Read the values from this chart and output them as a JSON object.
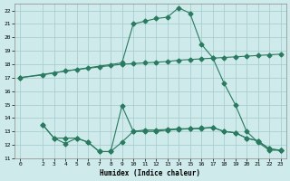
{
  "xlabel": "Humidex (Indice chaleur)",
  "bg_color": "#ceeaea",
  "grid_color": "#aacece",
  "line_color": "#2a7a60",
  "xlim": [
    -0.5,
    23.5
  ],
  "ylim": [
    11,
    22.5
  ],
  "yticks": [
    11,
    12,
    13,
    14,
    15,
    16,
    17,
    18,
    19,
    20,
    21,
    22
  ],
  "xticks": [
    0,
    2,
    3,
    4,
    5,
    6,
    7,
    8,
    9,
    10,
    11,
    12,
    13,
    14,
    15,
    16,
    17,
    18,
    19,
    20,
    21,
    22,
    23
  ],
  "line1_x": [
    0,
    2,
    3,
    4,
    5,
    6,
    7,
    8,
    9,
    10,
    11,
    12,
    13,
    14,
    15,
    16,
    17,
    18,
    19,
    20,
    21,
    22,
    23
  ],
  "line1_y": [
    17.0,
    17.2,
    17.35,
    17.5,
    17.6,
    17.7,
    17.8,
    17.9,
    18.0,
    18.05,
    18.1,
    18.15,
    18.2,
    18.3,
    18.35,
    18.4,
    18.45,
    18.5,
    18.55,
    18.6,
    18.65,
    18.7,
    18.75
  ],
  "line2_x": [
    0,
    9,
    10,
    11,
    12,
    13,
    14,
    15,
    16,
    17,
    18,
    19,
    20,
    21,
    22,
    23
  ],
  "line2_y": [
    17.0,
    18.1,
    21.0,
    21.2,
    21.4,
    21.5,
    22.2,
    21.8,
    19.5,
    18.5,
    16.6,
    15.0,
    13.0,
    12.2,
    11.6,
    11.6
  ],
  "line3_x": [
    2,
    3,
    4,
    5,
    6,
    7,
    8,
    9,
    10,
    11,
    12,
    13,
    14,
    15,
    16,
    17,
    18,
    19,
    20,
    21,
    22,
    23
  ],
  "line3_y": [
    13.5,
    12.5,
    12.5,
    12.5,
    12.2,
    11.5,
    11.5,
    12.2,
    13.0,
    13.1,
    13.1,
    13.15,
    13.2,
    13.2,
    13.25,
    13.3,
    13.0,
    12.9,
    12.5,
    12.3,
    11.7,
    11.6
  ],
  "line4_x": [
    2,
    3,
    4,
    5,
    6,
    7,
    8,
    9,
    10,
    11,
    12,
    13,
    14,
    15,
    16,
    17,
    18,
    19,
    20,
    21,
    22,
    23
  ],
  "line4_y": [
    13.5,
    12.5,
    12.1,
    12.5,
    12.2,
    11.5,
    11.5,
    14.9,
    13.0,
    13.0,
    13.0,
    13.1,
    13.15,
    13.2,
    13.2,
    13.3,
    13.0,
    12.9,
    12.5,
    12.3,
    11.7,
    11.6
  ]
}
